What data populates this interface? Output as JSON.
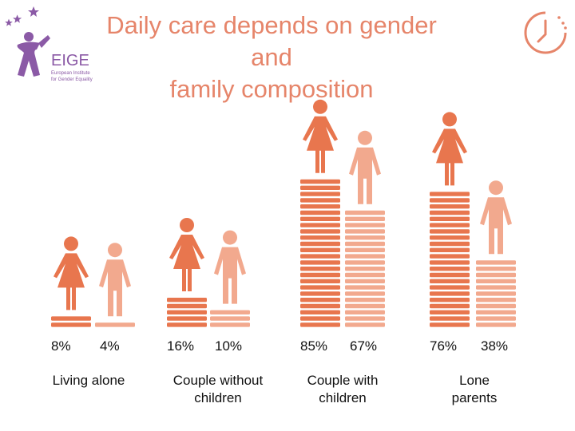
{
  "title": {
    "line1": "Daily care depends on gender and",
    "line2": "family composition"
  },
  "logo": {
    "name": "EIGE",
    "line1": "European Institute",
    "line2": "for Gender Equality"
  },
  "colors": {
    "women": "#e8764e",
    "men": "#f2a98e",
    "title": "#e6856a",
    "logo": "#8b5aa6"
  },
  "chart_data": {
    "type": "bar",
    "title": "Daily care depends on gender and family composition",
    "categories": [
      "Living alone",
      "Couple without\nchildren",
      "Couple with\nchildren",
      "Lone\nparents"
    ],
    "series": [
      {
        "values": [
          8,
          16,
          85,
          76
        ],
        "labels": [
          "8%",
          "16%",
          "85%",
          "76%"
        ],
        "color": "#e8764e",
        "icon": "woman-icon"
      },
      {
        "values": [
          4,
          10,
          67,
          38
        ],
        "labels": [
          "4%",
          "10%",
          "67%",
          "38%"
        ],
        "color": "#f2a98e",
        "icon": "man-icon"
      }
    ],
    "ylim": [
      0,
      100
    ],
    "legend": "none",
    "grid": false
  }
}
